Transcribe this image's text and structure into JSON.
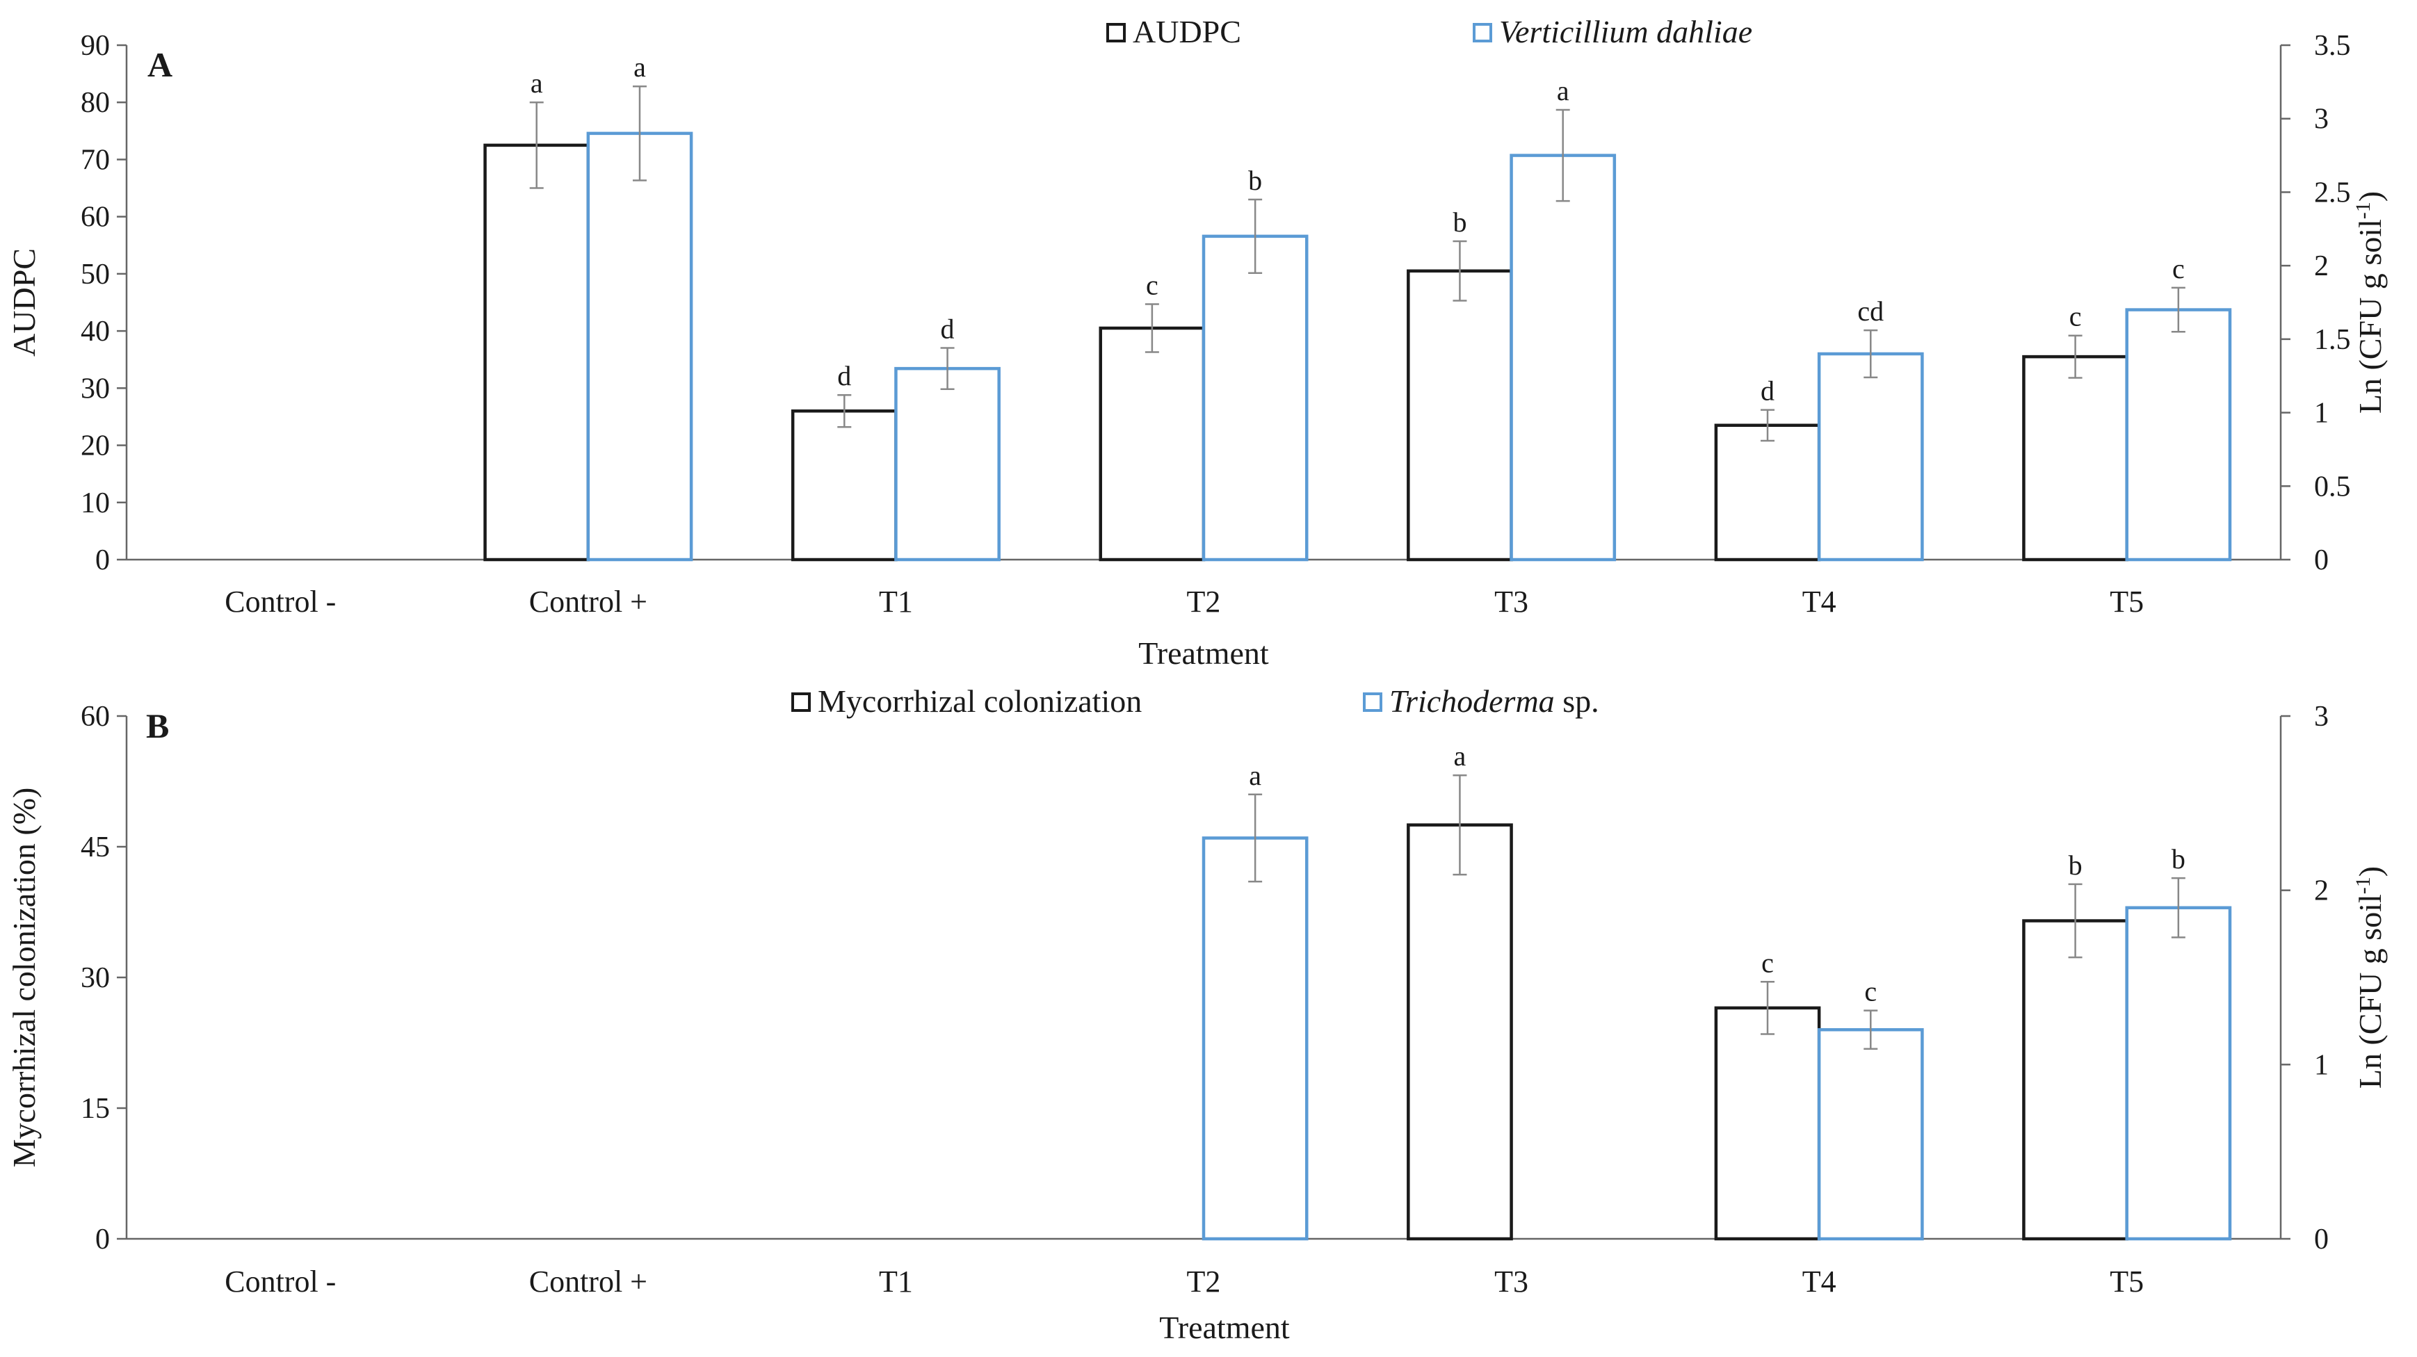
{
  "chart_data": [
    {
      "type": "bar",
      "panel_label": "A",
      "title": "",
      "categories": [
        "Control -",
        "Control +",
        "T1",
        "T2",
        "T3",
        "T4",
        "T5"
      ],
      "xlabel": "Treatment",
      "ylabel": "AUDPC",
      "ylim": [
        0,
        90
      ],
      "yticks": [
        0,
        10,
        20,
        30,
        40,
        50,
        60,
        70,
        80,
        90
      ],
      "ylabel_right": "Ln (CFU g soil-1)",
      "ylim_right": [
        0,
        3.5
      ],
      "yticks_right": [
        0,
        0.5,
        1,
        1.5,
        2,
        2.5,
        3,
        3.5
      ],
      "legend_position": "top-center",
      "grid": false,
      "series": [
        {
          "name": "AUDPC",
          "axis": "left",
          "color": "#1a1a1a",
          "values": [
            0,
            72.5,
            26,
            40.5,
            50.5,
            23.5,
            35.5
          ],
          "errors": [
            0,
            7.5,
            2.8,
            4.2,
            5.2,
            2.7,
            3.7
          ],
          "letters": [
            "",
            "a",
            "d",
            "c",
            "b",
            "d",
            "c"
          ]
        },
        {
          "name": "Verticillium dahliae",
          "italic": true,
          "axis": "right",
          "color": "#5b9bd5",
          "values": [
            0,
            2.9,
            1.3,
            2.2,
            2.75,
            1.4,
            1.7
          ],
          "errors": [
            0,
            0.32,
            0.14,
            0.25,
            0.31,
            0.16,
            0.15
          ],
          "letters": [
            "",
            "a",
            "d",
            "b",
            "a",
            "cd",
            "c"
          ]
        }
      ]
    },
    {
      "type": "bar",
      "panel_label": "B",
      "title": "",
      "categories": [
        "Control -",
        "Control +",
        "T1",
        "T2",
        "T3",
        "T4",
        "T5"
      ],
      "xlabel": "Treatment",
      "ylabel": "Mycorrhizal colonization (%)",
      "ylim": [
        0,
        60
      ],
      "yticks": [
        0,
        15,
        30,
        45,
        60
      ],
      "ylabel_right": "Ln (CFU g soil-1)",
      "ylim_right": [
        0,
        3
      ],
      "yticks_right": [
        0,
        1,
        2,
        3
      ],
      "legend_position": "top-center",
      "grid": false,
      "series": [
        {
          "name": "Mycorrhizal colonization",
          "axis": "left",
          "color": "#1a1a1a",
          "values": [
            0,
            0,
            0,
            0,
            47.5,
            26.5,
            36.5
          ],
          "errors": [
            0,
            0,
            0,
            0,
            5.7,
            3.0,
            4.2
          ],
          "letters": [
            "",
            "",
            "",
            "",
            "a",
            "c",
            "b"
          ]
        },
        {
          "name": "Trichoderma",
          "name_suffix": " sp.",
          "italic": true,
          "axis": "right",
          "color": "#5b9bd5",
          "values": [
            0,
            0,
            0,
            2.3,
            0,
            1.2,
            1.9
          ],
          "errors": [
            0,
            0,
            0,
            0.25,
            0,
            0.11,
            0.17
          ],
          "letters": [
            "",
            "",
            "",
            "a",
            "",
            "c",
            "b"
          ]
        }
      ]
    }
  ]
}
